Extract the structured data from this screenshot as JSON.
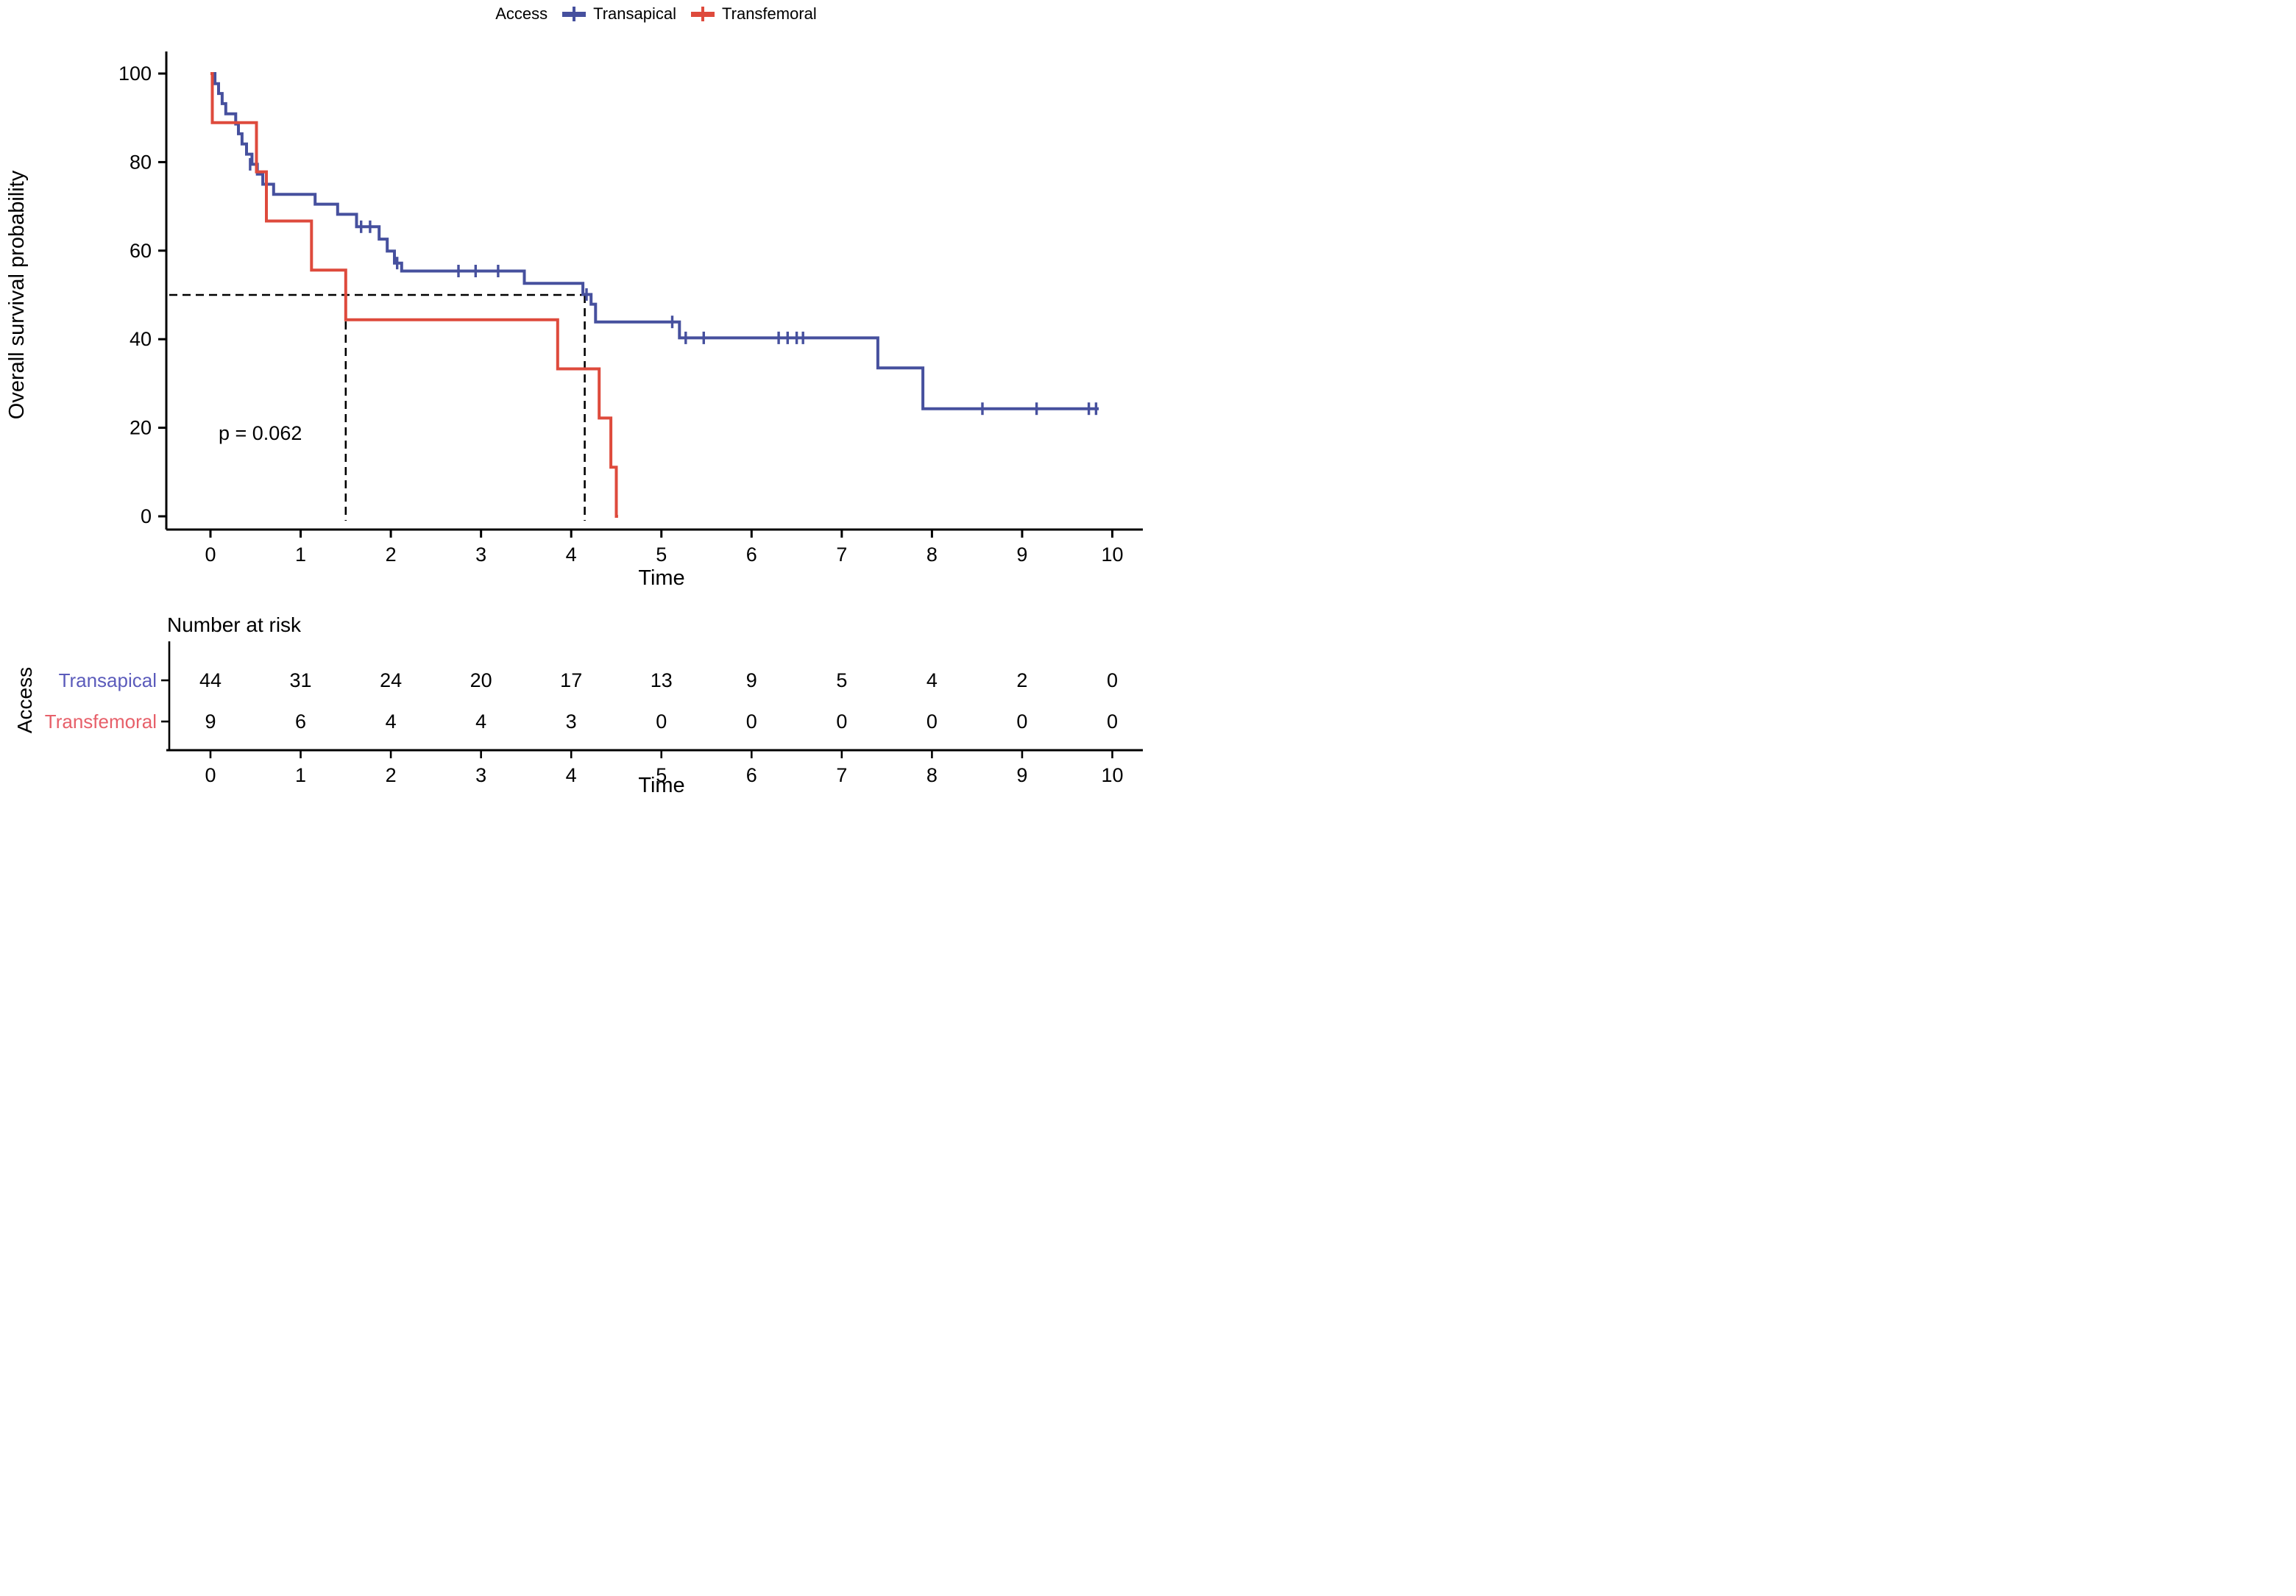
{
  "figure": {
    "background": "#ffffff",
    "legend": {
      "title": "Access",
      "items": [
        {
          "label": "Transapical",
          "color": "#46509e"
        },
        {
          "label": "Transfemoral",
          "color": "#de4a3c"
        }
      ]
    },
    "ylabel": "Overall survival probability",
    "xlabel": "Time",
    "annotation_pvalue": "p = 0.062",
    "risk_table_title": "Number at risk",
    "risk_table_group_label": "Access",
    "risk_table_xlabel": "Time"
  },
  "chart_data": {
    "type": "line",
    "subtype": "kaplan_meier_step",
    "title": "",
    "xlabel": "Time",
    "ylabel": "Overall survival probability",
    "xlim": [
      0,
      10
    ],
    "ylim": [
      0,
      100
    ],
    "x_ticks": [
      0,
      1,
      2,
      3,
      4,
      5,
      6,
      7,
      8,
      9,
      10
    ],
    "y_ticks": [
      0,
      20,
      40,
      60,
      80,
      100
    ],
    "grid": false,
    "legend_position": "top-center",
    "legend_title": "Access",
    "pvalue_text": "p = 0.062",
    "median_guides": {
      "survival_level": 50,
      "times": [
        1.5,
        4.15
      ]
    },
    "axis_color": "#000000",
    "guide_color": "#000000",
    "series": [
      {
        "name": "Transapical",
        "color": "#46509e",
        "n_start": 44,
        "steps": [
          [
            0,
            100
          ],
          [
            0.05,
            97.7
          ],
          [
            0.09,
            95.5
          ],
          [
            0.13,
            93.2
          ],
          [
            0.17,
            90.9
          ],
          [
            0.28,
            88.6
          ],
          [
            0.31,
            86.4
          ],
          [
            0.35,
            84.1
          ],
          [
            0.4,
            81.8
          ],
          [
            0.46,
            79.5
          ],
          [
            0.52,
            77.3
          ],
          [
            0.58,
            75.0
          ],
          [
            0.7,
            72.7
          ],
          [
            1.16,
            70.5
          ],
          [
            1.41,
            68.2
          ],
          [
            1.62,
            65.4
          ],
          [
            1.87,
            62.6
          ],
          [
            1.96,
            59.9
          ],
          [
            2.04,
            57.2
          ],
          [
            2.12,
            55.4
          ],
          [
            3.48,
            52.6
          ],
          [
            4.13,
            50.1
          ],
          [
            4.22,
            47.9
          ],
          [
            4.27,
            43.9
          ],
          [
            5.2,
            40.3
          ],
          [
            7.4,
            33.5
          ],
          [
            7.9,
            24.3
          ]
        ],
        "end_time": 9.85,
        "censors": [
          [
            0.44,
            79.5
          ],
          [
            1.67,
            65.4
          ],
          [
            1.77,
            65.4
          ],
          [
            2.07,
            57.2
          ],
          [
            2.75,
            55.4
          ],
          [
            2.94,
            55.4
          ],
          [
            3.19,
            55.4
          ],
          [
            4.17,
            50.1
          ],
          [
            5.12,
            43.9
          ],
          [
            5.27,
            40.3
          ],
          [
            5.47,
            40.3
          ],
          [
            6.3,
            40.3
          ],
          [
            6.4,
            40.3
          ],
          [
            6.5,
            40.3
          ],
          [
            6.57,
            40.3
          ],
          [
            8.56,
            24.3
          ],
          [
            9.16,
            24.3
          ],
          [
            9.74,
            24.3
          ],
          [
            9.82,
            24.3
          ]
        ]
      },
      {
        "name": "Transfemoral",
        "color": "#de4a3c",
        "n_start": 9,
        "steps": [
          [
            0,
            100
          ],
          [
            0.02,
            88.9
          ],
          [
            0.51,
            77.8
          ],
          [
            0.62,
            66.7
          ],
          [
            1.12,
            55.6
          ],
          [
            1.5,
            44.4
          ],
          [
            3.85,
            33.3
          ],
          [
            4.31,
            22.2
          ],
          [
            4.44,
            11.1
          ],
          [
            4.5,
            0
          ]
        ],
        "end_time": 4.52,
        "censors": []
      }
    ],
    "risk_table": {
      "title": "Number at risk",
      "group_label": "Access",
      "xlabel": "Time",
      "times": [
        0,
        1,
        2,
        3,
        4,
        5,
        6,
        7,
        8,
        9,
        10
      ],
      "rows": [
        {
          "name": "Transapical",
          "label_color": "#5b5bbb",
          "counts": [
            44,
            31,
            24,
            20,
            17,
            13,
            9,
            5,
            4,
            2,
            0
          ]
        },
        {
          "name": "Transfemoral",
          "label_color": "#e7606a",
          "counts": [
            9,
            6,
            4,
            4,
            3,
            0,
            0,
            0,
            0,
            0,
            0
          ]
        }
      ]
    }
  }
}
